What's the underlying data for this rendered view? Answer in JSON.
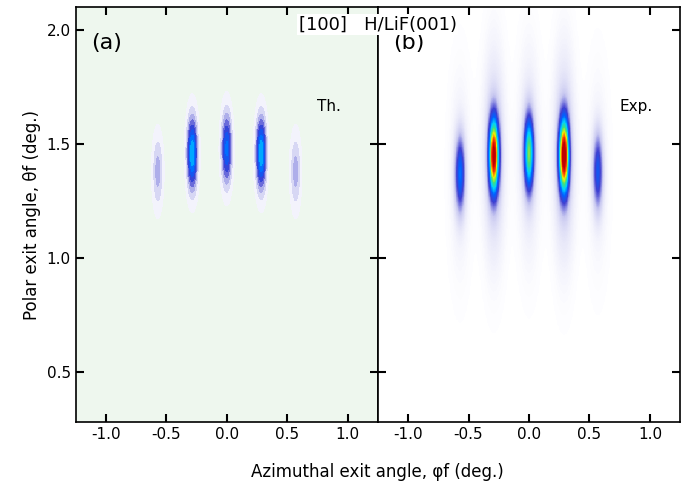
{
  "title": "[100]   H/LiF(001)",
  "x_label": "Azimuthal exit angle, φf (deg.)",
  "y_label": "Polar exit angle, θf (deg.)",
  "chart_data": [
    {
      "type": "contour",
      "label": "(a)",
      "annotation": "Th.",
      "spots": {
        "phi": [
          -0.57,
          -0.285,
          0.0,
          0.285,
          0.57
        ],
        "theta": [
          1.38,
          1.46,
          1.48,
          1.46,
          1.38
        ],
        "intensity": [
          0.35,
          1.0,
          0.8,
          1.0,
          0.35
        ]
      },
      "xlim": [
        -1.25,
        1.25
      ],
      "xticks": [
        {
          "value": -1.0,
          "label": "-1.0"
        },
        {
          "value": -0.5,
          "label": "-0.5"
        },
        {
          "value": 0.0,
          "label": "0.0"
        },
        {
          "value": 0.5,
          "label": "0.5"
        },
        {
          "value": 1.0,
          "label": "1.0"
        }
      ],
      "ylim": [
        0.28,
        2.1
      ],
      "yticks": [
        {
          "value": 0.5,
          "label": "0.5"
        },
        {
          "value": 1.0,
          "label": "1.0"
        },
        {
          "value": 1.5,
          "label": "1.5"
        },
        {
          "value": 2.0,
          "label": "2.0"
        }
      ]
    },
    {
      "type": "heatmap",
      "label": "(b)",
      "annotation": "Exp.",
      "spots": {
        "phi": [
          -0.57,
          -0.29,
          0.0,
          0.29,
          0.57
        ],
        "theta": [
          1.37,
          1.45,
          1.46,
          1.45,
          1.38
        ],
        "intensity": [
          0.35,
          0.95,
          0.6,
          1.0,
          0.3
        ]
      },
      "xlim": [
        -1.25,
        1.25
      ],
      "xticks": [
        {
          "value": -1.0,
          "label": "-1.0"
        },
        {
          "value": -0.5,
          "label": "-0.5"
        },
        {
          "value": 0.0,
          "label": "0.0"
        },
        {
          "value": 0.5,
          "label": "0.5"
        },
        {
          "value": 1.0,
          "label": "1.0"
        }
      ],
      "ylim": [
        0.28,
        2.1
      ],
      "yticks": [
        {
          "value": 0.5,
          "label": "0.5"
        },
        {
          "value": 1.0,
          "label": "1.0"
        },
        {
          "value": 1.5,
          "label": "1.5"
        },
        {
          "value": 2.0,
          "label": "2.0"
        }
      ],
      "tick_labels": "x"
    }
  ]
}
